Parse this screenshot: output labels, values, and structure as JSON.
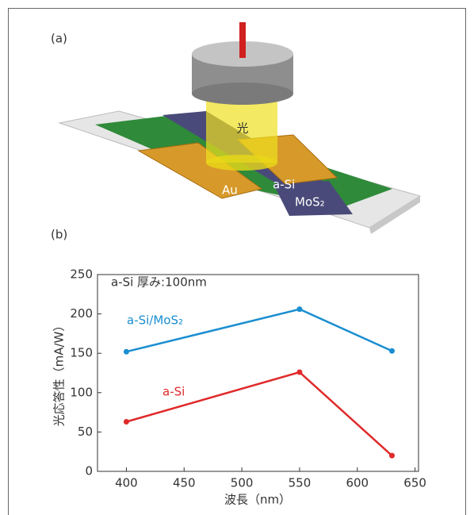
{
  "panel_a": {
    "label": "(a)",
    "light": "光",
    "au": "Au",
    "asi": "a-Si",
    "mos2": "MoS₂"
  },
  "panel_b_label": "(b)",
  "chart_data": {
    "type": "line",
    "annotation": "a-Si 厚み:100nm",
    "x_label": "波長（nm）",
    "y_label": "光応答性（mA/W）",
    "x": [
      400,
      550,
      630
    ],
    "series": [
      {
        "name": "a-Si/MoS₂",
        "color": "#1a8ed0",
        "values": [
          152,
          206,
          153
        ]
      },
      {
        "name": "a-Si",
        "color": "#e02a2a",
        "values": [
          63,
          126,
          20
        ]
      }
    ],
    "xlim": [
      375,
      653
    ],
    "xticks": [
      400,
      450,
      500,
      550,
      600,
      650
    ],
    "ylim": [
      0,
      250
    ],
    "yticks": [
      0,
      50,
      100,
      150,
      200,
      250
    ],
    "grid": false
  }
}
